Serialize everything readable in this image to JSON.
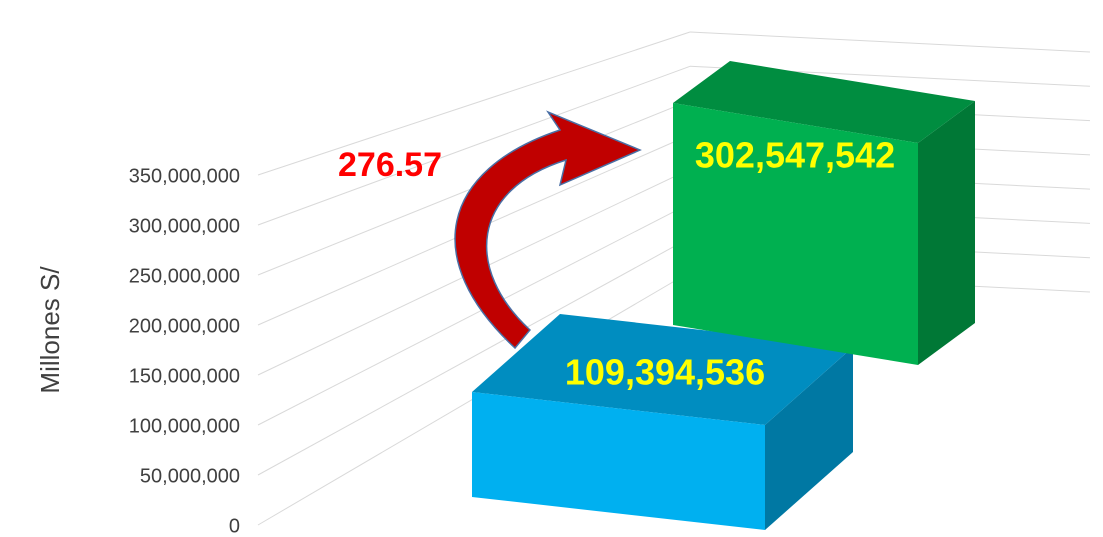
{
  "chart_data": {
    "type": "bar3d",
    "y_axis_label": "Millones S/",
    "series": [
      {
        "colors": [
          "#00b0f0",
          "#00b050"
        ],
        "values": [
          109394536,
          302547542
        ],
        "value_labels": [
          "109,394,536",
          "302,547,542"
        ],
        "label_color": "#ffff00"
      }
    ],
    "ylim": [
      0,
      350000000
    ],
    "yticks": [
      {
        "value": 0,
        "label": "0"
      },
      {
        "value": 50000000,
        "label": "50,000,000"
      },
      {
        "value": 100000000,
        "label": "100,000,000"
      },
      {
        "value": 150000000,
        "label": "150,000,000"
      },
      {
        "value": 200000000,
        "label": "200,000,000"
      },
      {
        "value": 250000000,
        "label": "250,000,000"
      },
      {
        "value": 300000000,
        "label": "300,000,000"
      },
      {
        "value": 350000000,
        "label": "350,000,000"
      }
    ],
    "grid": true,
    "annotations": [
      {
        "text": "276.57",
        "color": "#ff0000"
      }
    ]
  }
}
